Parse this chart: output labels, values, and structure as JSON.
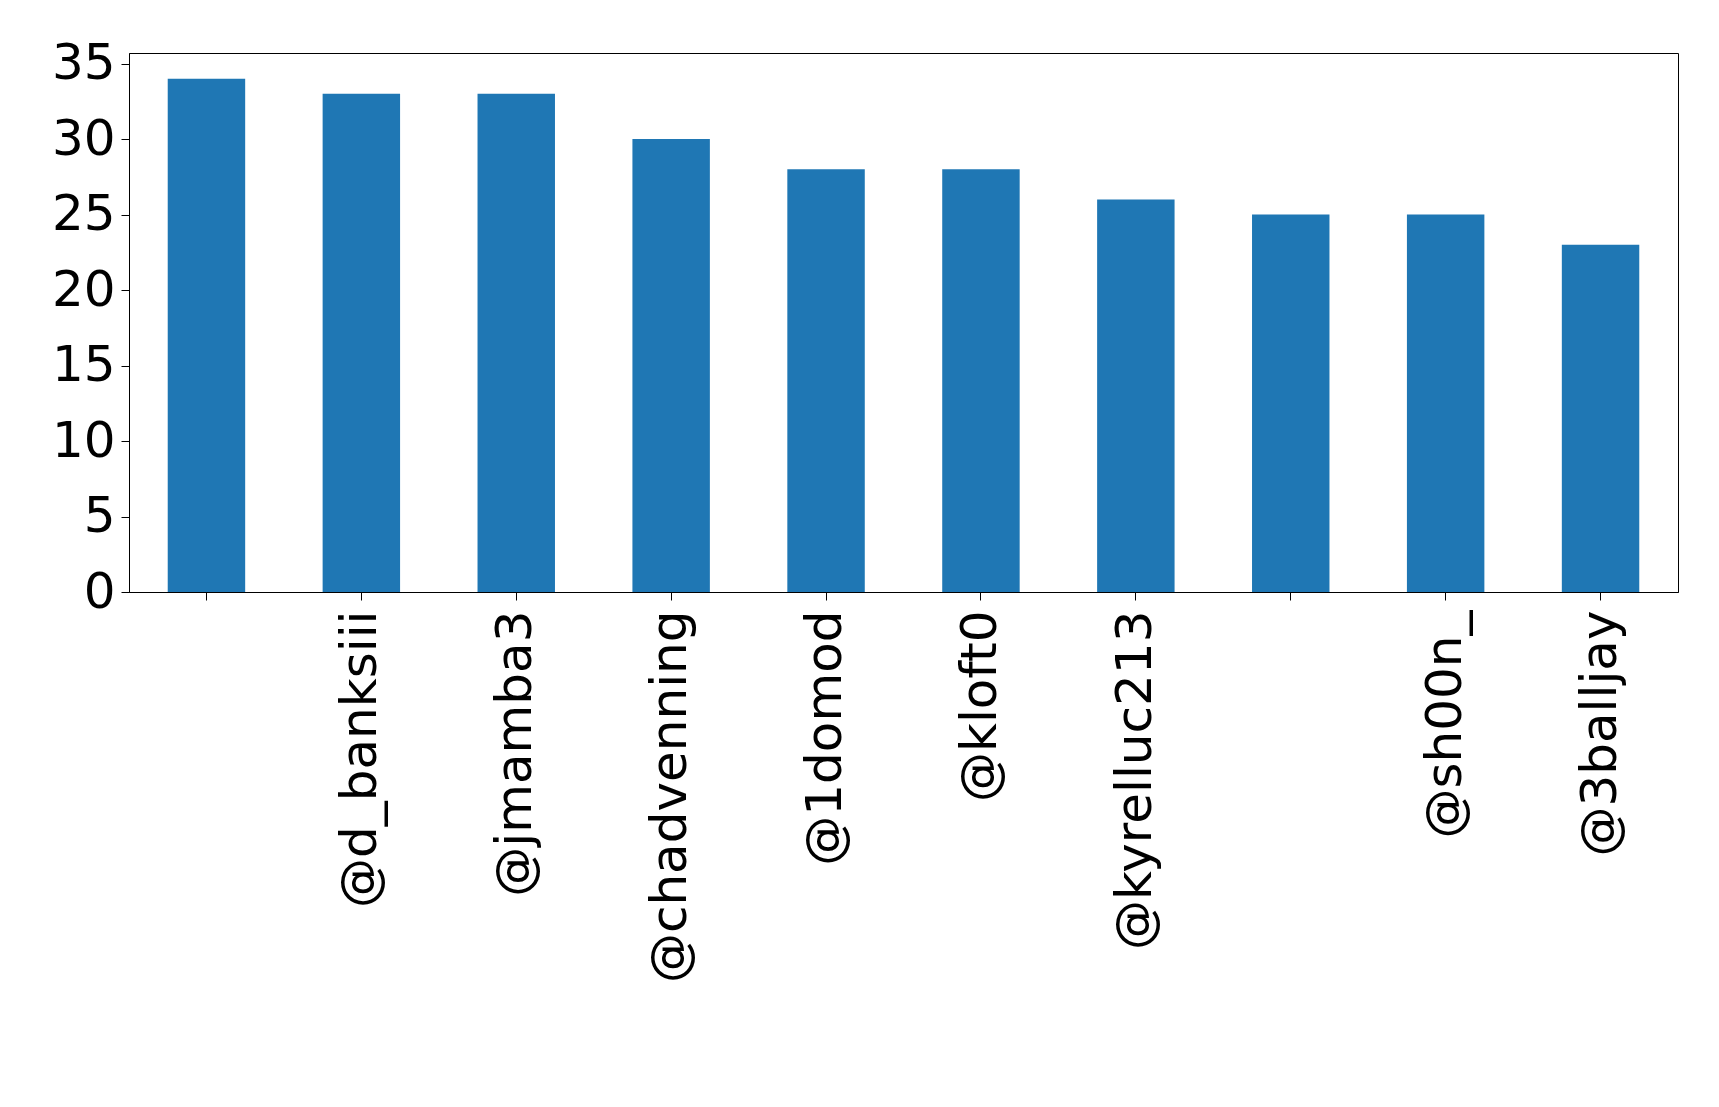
{
  "chart_data": {
    "type": "bar",
    "categories": [
      null,
      "@d_banksiii",
      "@jmamba3",
      "@chadvenning",
      "@1domod",
      "@kloft0",
      "@kyrelluc213",
      null,
      "@sh00n_",
      "@3balljay"
    ],
    "values": [
      34,
      33,
      33,
      30,
      28,
      28,
      26,
      25,
      25,
      23
    ],
    "color": "#1f77b4",
    "ylim": [
      0,
      35.7
    ],
    "yticks": [
      0,
      5,
      10,
      15,
      20,
      25,
      30,
      35
    ],
    "grid": false
  }
}
